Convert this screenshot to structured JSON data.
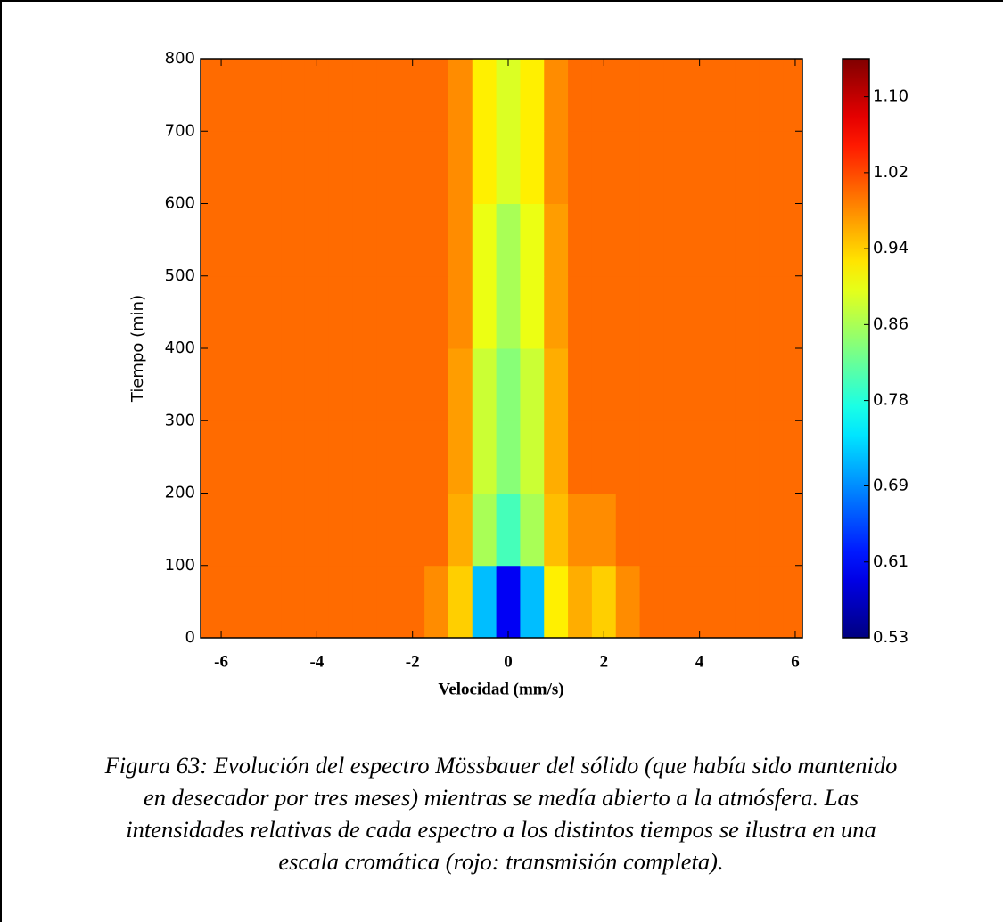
{
  "chart_data": {
    "type": "heatmap",
    "xlabel": "Velocidad (mm/s)",
    "ylabel": "Tiempo (min)",
    "x": [
      -6.5,
      -6,
      -5.5,
      -5,
      -4.5,
      -4,
      -3.5,
      -3,
      -2.5,
      -2,
      -1.5,
      -1,
      -0.5,
      0,
      0.5,
      1,
      1.5,
      2,
      2.5,
      3,
      3.5,
      4,
      4.5,
      5,
      5.5,
      6,
      6.5
    ],
    "y": [
      50,
      150,
      250,
      350,
      450,
      550,
      650,
      750
    ],
    "z": [
      [
        1.0,
        1.0,
        1.0,
        1.0,
        1.0,
        1.0,
        1.0,
        1.0,
        1.0,
        1.0,
        0.98,
        0.94,
        0.72,
        0.6,
        0.72,
        0.92,
        0.96,
        0.94,
        0.98,
        1.0,
        1.0,
        1.0,
        1.0,
        1.0,
        1.0,
        1.0,
        1.0
      ],
      [
        1.0,
        1.0,
        1.0,
        1.0,
        1.0,
        1.0,
        1.0,
        1.0,
        1.0,
        1.0,
        1.0,
        0.96,
        0.86,
        0.8,
        0.86,
        0.95,
        0.98,
        0.98,
        1.0,
        1.0,
        1.0,
        1.0,
        1.0,
        1.0,
        1.0,
        1.0,
        1.0
      ],
      [
        1.0,
        1.0,
        1.0,
        1.0,
        1.0,
        1.0,
        1.0,
        1.0,
        1.0,
        1.0,
        1.0,
        0.97,
        0.88,
        0.84,
        0.88,
        0.96,
        1.0,
        1.0,
        1.0,
        1.0,
        1.0,
        1.0,
        1.0,
        1.0,
        1.0,
        1.0,
        1.0
      ],
      [
        1.0,
        1.0,
        1.0,
        1.0,
        1.0,
        1.0,
        1.0,
        1.0,
        1.0,
        1.0,
        1.0,
        0.97,
        0.88,
        0.84,
        0.88,
        0.96,
        1.0,
        1.0,
        1.0,
        1.0,
        1.0,
        1.0,
        1.0,
        1.0,
        1.0,
        1.0,
        1.0
      ],
      [
        1.0,
        1.0,
        1.0,
        1.0,
        1.0,
        1.0,
        1.0,
        1.0,
        1.0,
        1.0,
        1.0,
        0.98,
        0.9,
        0.86,
        0.9,
        0.97,
        1.0,
        1.0,
        1.0,
        1.0,
        1.0,
        1.0,
        1.0,
        1.0,
        1.0,
        1.0,
        1.0
      ],
      [
        1.0,
        1.0,
        1.0,
        1.0,
        1.0,
        1.0,
        1.0,
        1.0,
        1.0,
        1.0,
        1.0,
        0.98,
        0.9,
        0.86,
        0.9,
        0.97,
        1.0,
        1.0,
        1.0,
        1.0,
        1.0,
        1.0,
        1.0,
        1.0,
        1.0,
        1.0,
        1.0
      ],
      [
        1.0,
        1.0,
        1.0,
        1.0,
        1.0,
        1.0,
        1.0,
        1.0,
        1.0,
        1.0,
        1.0,
        0.98,
        0.92,
        0.89,
        0.92,
        0.98,
        1.0,
        1.0,
        1.0,
        1.0,
        1.0,
        1.0,
        1.0,
        1.0,
        1.0,
        1.0,
        1.0
      ],
      [
        1.0,
        1.0,
        1.0,
        1.0,
        1.0,
        1.0,
        1.0,
        1.0,
        1.0,
        1.0,
        1.0,
        0.98,
        0.92,
        0.89,
        0.92,
        0.98,
        1.0,
        1.0,
        1.0,
        1.0,
        1.0,
        1.0,
        1.0,
        1.0,
        1.0,
        1.0,
        1.0
      ]
    ],
    "xlim": [
      -6.43,
      6.15
    ],
    "xticks": [
      -6,
      -4,
      -2,
      0,
      2,
      4,
      6
    ],
    "ylim": [
      0,
      800
    ],
    "yticks": [
      0,
      100,
      200,
      300,
      400,
      500,
      600,
      700,
      800
    ],
    "colormap": "jet",
    "clim": [
      0.53,
      1.14
    ],
    "cticks": [
      0.53,
      0.61,
      0.69,
      0.78,
      0.86,
      0.94,
      1.02,
      {
        "value": 1.1,
        "label": "1.10"
      }
    ],
    "caption_lines": [
      "Figura 63: Evolución del espectro Mössbauer del sólido (que había sido mantenido",
      "en desecador por tres meses) mientras se medía abierto a la atmósfera. Las",
      "intensidades relativas de cada espectro a los distintos tiempos se ilustra en una",
      "escala cromática (rojo: transmisión completa)."
    ]
  }
}
